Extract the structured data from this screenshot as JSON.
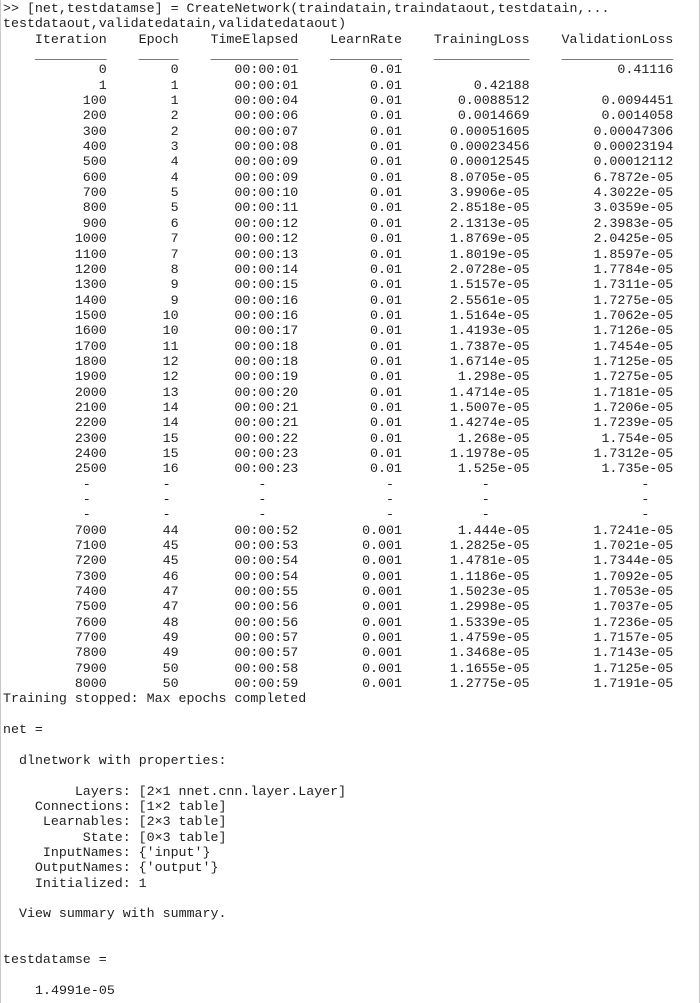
{
  "command": {
    "prompt_line": ">> [net,testdatamse] = CreateNetwork(traindatain,traindataout,testdatain,...",
    "continuation_line": "testdataout,validatedatain,validatedataout)"
  },
  "training_table": {
    "columns": [
      "Iteration",
      "Epoch",
      "TimeElapsed",
      "LearnRate",
      "TrainingLoss",
      "ValidationLoss"
    ],
    "rows": [
      [
        "0",
        "0",
        "00:00:01",
        "0.01",
        "",
        "0.41116"
      ],
      [
        "1",
        "1",
        "00:00:01",
        "0.01",
        "0.42188",
        ""
      ],
      [
        "100",
        "1",
        "00:00:04",
        "0.01",
        "0.0088512",
        "0.0094451"
      ],
      [
        "200",
        "2",
        "00:00:06",
        "0.01",
        "0.0014669",
        "0.0014058"
      ],
      [
        "300",
        "2",
        "00:00:07",
        "0.01",
        "0.00051605",
        "0.00047306"
      ],
      [
        "400",
        "3",
        "00:00:08",
        "0.01",
        "0.00023456",
        "0.00023194"
      ],
      [
        "500",
        "4",
        "00:00:09",
        "0.01",
        "0.00012545",
        "0.00012112"
      ],
      [
        "600",
        "4",
        "00:00:09",
        "0.01",
        "8.0705e-05",
        "6.7872e-05"
      ],
      [
        "700",
        "5",
        "00:00:10",
        "0.01",
        "3.9906e-05",
        "4.3022e-05"
      ],
      [
        "800",
        "5",
        "00:00:11",
        "0.01",
        "2.8518e-05",
        "3.0359e-05"
      ],
      [
        "900",
        "6",
        "00:00:12",
        "0.01",
        "2.1313e-05",
        "2.3983e-05"
      ],
      [
        "1000",
        "7",
        "00:00:12",
        "0.01",
        "1.8769e-05",
        "2.0425e-05"
      ],
      [
        "1100",
        "7",
        "00:00:13",
        "0.01",
        "1.8019e-05",
        "1.8597e-05"
      ],
      [
        "1200",
        "8",
        "00:00:14",
        "0.01",
        "2.0728e-05",
        "1.7784e-05"
      ],
      [
        "1300",
        "9",
        "00:00:15",
        "0.01",
        "1.5157e-05",
        "1.7311e-05"
      ],
      [
        "1400",
        "9",
        "00:00:16",
        "0.01",
        "2.5561e-05",
        "1.7275e-05"
      ],
      [
        "1500",
        "10",
        "00:00:16",
        "0.01",
        "1.5164e-05",
        "1.7062e-05"
      ],
      [
        "1600",
        "10",
        "00:00:17",
        "0.01",
        "1.4193e-05",
        "1.7126e-05"
      ],
      [
        "1700",
        "11",
        "00:00:18",
        "0.01",
        "1.7387e-05",
        "1.7454e-05"
      ],
      [
        "1800",
        "12",
        "00:00:18",
        "0.01",
        "1.6714e-05",
        "1.7125e-05"
      ],
      [
        "1900",
        "12",
        "00:00:19",
        "0.01",
        "1.298e-05",
        "1.7275e-05"
      ],
      [
        "2000",
        "13",
        "00:00:20",
        "0.01",
        "1.4714e-05",
        "1.7181e-05"
      ],
      [
        "2100",
        "14",
        "00:00:21",
        "0.01",
        "1.5007e-05",
        "1.7206e-05"
      ],
      [
        "2200",
        "14",
        "00:00:21",
        "0.01",
        "1.4274e-05",
        "1.7239e-05"
      ],
      [
        "2300",
        "15",
        "00:00:22",
        "0.01",
        "1.268e-05",
        "1.754e-05"
      ],
      [
        "2400",
        "15",
        "00:00:23",
        "0.01",
        "1.1978e-05",
        "1.7312e-05"
      ],
      [
        "2500",
        "16",
        "00:00:23",
        "0.01",
        "1.525e-05",
        "1.735e-05"
      ],
      [
        "-",
        "-",
        "-",
        "-",
        "-",
        "-"
      ],
      [
        "-",
        "-",
        "-",
        "-",
        "-",
        "-"
      ],
      [
        "-",
        "-",
        "-",
        "-",
        "-",
        "-"
      ],
      [
        "7000",
        "44",
        "00:00:52",
        "0.001",
        "1.444e-05",
        "1.7241e-05"
      ],
      [
        "7100",
        "45",
        "00:00:53",
        "0.001",
        "1.2825e-05",
        "1.7021e-05"
      ],
      [
        "7200",
        "45",
        "00:00:54",
        "0.001",
        "1.4781e-05",
        "1.7344e-05"
      ],
      [
        "7300",
        "46",
        "00:00:54",
        "0.001",
        "1.1186e-05",
        "1.7092e-05"
      ],
      [
        "7400",
        "47",
        "00:00:55",
        "0.001",
        "1.5023e-05",
        "1.7053e-05"
      ],
      [
        "7500",
        "47",
        "00:00:56",
        "0.001",
        "1.2998e-05",
        "1.7037e-05"
      ],
      [
        "7600",
        "48",
        "00:00:56",
        "0.001",
        "1.5339e-05",
        "1.7236e-05"
      ],
      [
        "7700",
        "49",
        "00:00:57",
        "0.001",
        "1.4759e-05",
        "1.7157e-05"
      ],
      [
        "7800",
        "49",
        "00:00:57",
        "0.001",
        "1.3468e-05",
        "1.7143e-05"
      ],
      [
        "7900",
        "50",
        "00:00:58",
        "0.001",
        "1.1655e-05",
        "1.7125e-05"
      ],
      [
        "8000",
        "50",
        "00:00:59",
        "0.001",
        "1.2775e-05",
        "1.7191e-05"
      ]
    ]
  },
  "messages": {
    "training_stopped": "Training stopped: Max epochs completed"
  },
  "net_output": {
    "assignment": "net =",
    "class_line": "dlnetwork with properties:",
    "properties": [
      {
        "name": "Layers",
        "value": "[2×1 nnet.cnn.layer.Layer]"
      },
      {
        "name": "Connections",
        "value": "[1×2 table]"
      },
      {
        "name": "Learnables",
        "value": "[2×3 table]"
      },
      {
        "name": "State",
        "value": "[0×3 table]"
      },
      {
        "name": "InputNames",
        "value": "{'input'}"
      },
      {
        "name": "OutputNames",
        "value": "{'output'}"
      },
      {
        "name": "Initialized",
        "value": "1"
      }
    ],
    "summary_hint": "View summary with summary."
  },
  "result_output": {
    "assignment": "testdatamse =",
    "value": "1.4991e-05"
  },
  "colors": {
    "text": "#1f1f1f",
    "background": "#ffffff",
    "frame_border": "#c9c9c9"
  }
}
